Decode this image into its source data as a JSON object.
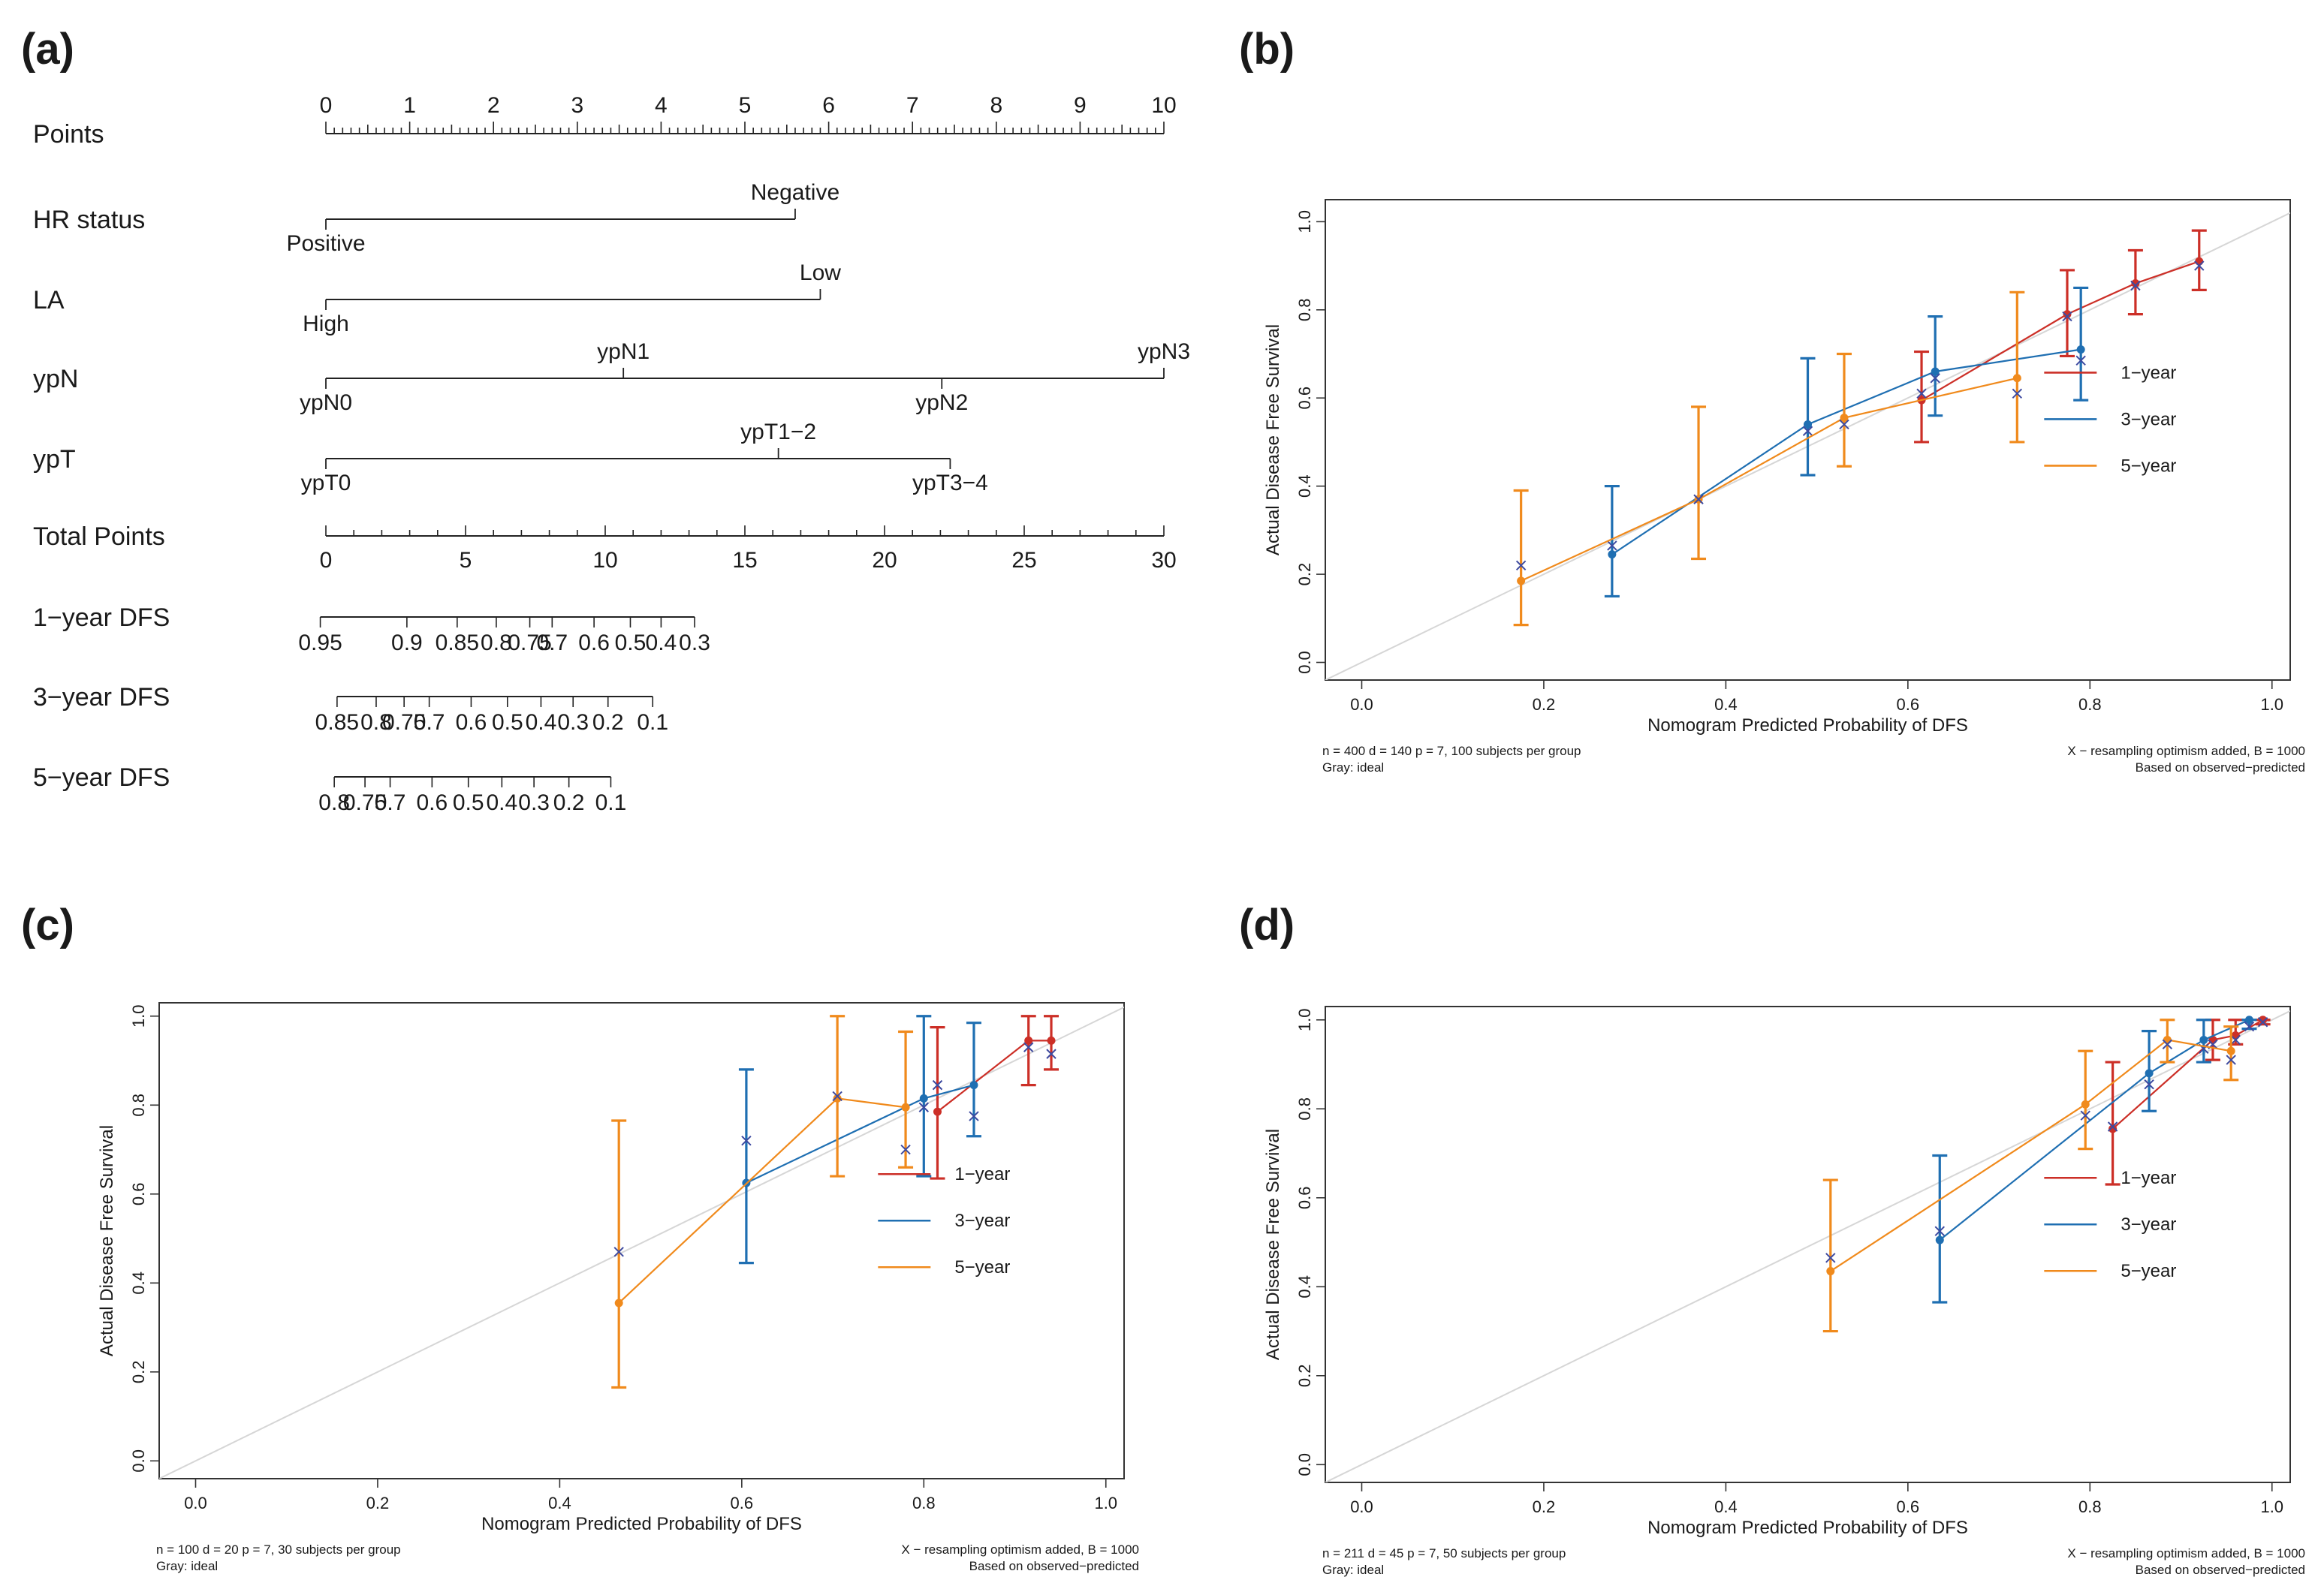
{
  "figure": {
    "panel_letters": [
      "(a)",
      "(b)",
      "(c)",
      "(d)"
    ]
  },
  "nomogram": {
    "rows": [
      {
        "name": "points",
        "label": "Points",
        "kind": "points",
        "ticks": [
          "0",
          "1",
          "2",
          "3",
          "4",
          "5",
          "6",
          "7",
          "8",
          "9",
          "10"
        ]
      },
      {
        "name": "hr-status",
        "label": "HR status",
        "kind": "factor",
        "levels": [
          {
            "label": "Positive",
            "value": 0,
            "pos": "below"
          },
          {
            "label": "Negative",
            "value": 5.6,
            "pos": "above"
          }
        ]
      },
      {
        "name": "la",
        "label": "LA",
        "kind": "factor",
        "levels": [
          {
            "label": "High",
            "value": 0,
            "pos": "below"
          },
          {
            "label": "Low",
            "value": 5.9,
            "pos": "above"
          }
        ]
      },
      {
        "name": "ypn",
        "label": "ypN",
        "kind": "factor",
        "levels": [
          {
            "label": "ypN0",
            "value": 0,
            "pos": "below"
          },
          {
            "label": "ypN1",
            "value": 3.55,
            "pos": "above"
          },
          {
            "label": "ypN2",
            "value": 7.35,
            "pos": "below"
          },
          {
            "label": "ypN3",
            "value": 10,
            "pos": "above"
          }
        ]
      },
      {
        "name": "ypt",
        "label": "ypT",
        "kind": "factor",
        "levels": [
          {
            "label": "ypT0",
            "value": 0,
            "pos": "below"
          },
          {
            "label": "ypT1−2",
            "value": 5.4,
            "pos": "above"
          },
          {
            "label": "ypT3−4",
            "value": 7.45,
            "pos": "below"
          }
        ]
      },
      {
        "name": "total-points",
        "label": "Total Points",
        "kind": "total",
        "ticks": [
          {
            "label": "0",
            "value": 0
          },
          {
            "label": "5",
            "value": 5
          },
          {
            "label": "10",
            "value": 10
          },
          {
            "label": "15",
            "value": 15
          },
          {
            "label": "20",
            "value": 20
          },
          {
            "label": "25",
            "value": 25
          },
          {
            "label": "30",
            "value": 30
          }
        ]
      },
      {
        "name": "dfs-1-year",
        "label": "1−year DFS",
        "kind": "prob",
        "ticks": [
          {
            "label": "0.95",
            "value": -0.2
          },
          {
            "label": "0.9",
            "value": 2.9
          },
          {
            "label": "0.85",
            "value": 4.7
          },
          {
            "label": "0.8",
            "value": 6.1
          },
          {
            "label": "0.75",
            "value": 7.3
          },
          {
            "label": "0.7",
            "value": 8.1
          },
          {
            "label": "0.6",
            "value": 9.6
          },
          {
            "label": "0.5",
            "value": 10.9
          },
          {
            "label": "0.4",
            "value": 12.0
          },
          {
            "label": "0.3",
            "value": 13.2
          }
        ]
      },
      {
        "name": "dfs-3-year",
        "label": "3−year DFS",
        "kind": "prob",
        "ticks": [
          {
            "label": "0.85",
            "value": 0.4
          },
          {
            "label": "0.8",
            "value": 1.8
          },
          {
            "label": "0.75",
            "value": 2.8
          },
          {
            "label": "0.7",
            "value": 3.7
          },
          {
            "label": "0.6",
            "value": 5.2
          },
          {
            "label": "0.5",
            "value": 6.5
          },
          {
            "label": "0.4",
            "value": 7.7
          },
          {
            "label": "0.3",
            "value": 8.85
          },
          {
            "label": "0.2",
            "value": 10.1
          },
          {
            "label": "0.1",
            "value": 11.7
          }
        ]
      },
      {
        "name": "dfs-5-year",
        "label": "5−year DFS",
        "kind": "prob",
        "ticks": [
          {
            "label": "0.8",
            "value": 0.3
          },
          {
            "label": "0.75",
            "value": 1.4
          },
          {
            "label": "0.7",
            "value": 2.3
          },
          {
            "label": "0.6",
            "value": 3.8
          },
          {
            "label": "0.5",
            "value": 5.1
          },
          {
            "label": "0.4",
            "value": 6.3
          },
          {
            "label": "0.3",
            "value": 7.45
          },
          {
            "label": "0.2",
            "value": 8.7
          },
          {
            "label": "0.1",
            "value": 10.2
          }
        ]
      }
    ]
  },
  "colors": {
    "year1": "#cc2f27",
    "year3": "#1f6fb2",
    "year5": "#f08a1c",
    "ideal": "#d6d6d6",
    "cross": "#3d4aa0"
  },
  "chart_data": [
    {
      "type": "line",
      "panel": "(b)",
      "xlabel": "Nomogram Predicted Probability of DFS",
      "ylabel": "Actual Disease Free Survival",
      "xlim": [
        -0.04,
        1.02
      ],
      "ylim": [
        -0.04,
        1.05
      ],
      "xticks": [
        "0.0",
        "0.2",
        "0.4",
        "0.6",
        "0.8",
        "1.0"
      ],
      "yticks": [
        "0.0",
        "0.2",
        "0.4",
        "0.6",
        "0.8",
        "1.0"
      ],
      "legend": [
        "1−year",
        "3−year",
        "5−year"
      ],
      "footnote_left": [
        "n = 400 d = 140 p = 7, 100 subjects per group",
        "Gray: ideal"
      ],
      "footnote_right": [
        "X − resampling optimism added, B = 1000",
        "Based on observed−predicted"
      ],
      "series": [
        {
          "name": "1-year",
          "color_key": "year1",
          "points": [
            {
              "x": 0.615,
              "y": 0.595,
              "lo": 0.5,
              "hi": 0.705,
              "cx": 0.615,
              "cy": 0.61
            },
            {
              "x": 0.775,
              "y": 0.79,
              "lo": 0.695,
              "hi": 0.89,
              "cx": 0.775,
              "cy": 0.785
            },
            {
              "x": 0.85,
              "y": 0.86,
              "lo": 0.79,
              "hi": 0.935,
              "cx": 0.85,
              "cy": 0.855
            },
            {
              "x": 0.92,
              "y": 0.91,
              "lo": 0.845,
              "hi": 0.98,
              "cx": 0.92,
              "cy": 0.9
            }
          ]
        },
        {
          "name": "3-year",
          "color_key": "year3",
          "points": [
            {
              "x": 0.275,
              "y": 0.245,
              "lo": 0.15,
              "hi": 0.4,
              "cx": 0.275,
              "cy": 0.265
            },
            {
              "x": 0.49,
              "y": 0.54,
              "lo": 0.425,
              "hi": 0.69,
              "cx": 0.49,
              "cy": 0.525
            },
            {
              "x": 0.63,
              "y": 0.66,
              "lo": 0.56,
              "hi": 0.785,
              "cx": 0.63,
              "cy": 0.645
            },
            {
              "x": 0.79,
              "y": 0.71,
              "lo": 0.595,
              "hi": 0.85,
              "cx": 0.79,
              "cy": 0.685
            }
          ]
        },
        {
          "name": "5-year",
          "color_key": "year5",
          "points": [
            {
              "x": 0.175,
              "y": 0.185,
              "lo": 0.085,
              "hi": 0.39,
              "cx": 0.175,
              "cy": 0.22
            },
            {
              "x": 0.37,
              "y": 0.37,
              "lo": 0.235,
              "hi": 0.58,
              "cx": 0.37,
              "cy": 0.37
            },
            {
              "x": 0.53,
              "y": 0.555,
              "lo": 0.445,
              "hi": 0.7,
              "cx": 0.53,
              "cy": 0.54
            },
            {
              "x": 0.72,
              "y": 0.645,
              "lo": 0.5,
              "hi": 0.84,
              "cx": 0.72,
              "cy": 0.61
            }
          ]
        }
      ]
    },
    {
      "type": "line",
      "panel": "(c)",
      "xlabel": "Nomogram Predicted Probability of DFS",
      "ylabel": "Actual Disease Free Survival",
      "xlim": [
        -0.04,
        1.02
      ],
      "ylim": [
        -0.04,
        1.03
      ],
      "xticks": [
        "0.0",
        "0.2",
        "0.4",
        "0.6",
        "0.8",
        "1.0"
      ],
      "yticks": [
        "0.0",
        "0.2",
        "0.4",
        "0.6",
        "0.8",
        "1.0"
      ],
      "legend": [
        "1−year",
        "3−year",
        "5−year"
      ],
      "footnote_left": [
        "n = 100 d = 20 p = 7, 30 subjects per group",
        "Gray: ideal"
      ],
      "footnote_right": [
        "X − resampling optimism added, B = 1000",
        "Based on observed−predicted"
      ],
      "series": [
        {
          "name": "1-year",
          "color_key": "year1",
          "points": [
            {
              "x": 0.815,
              "y": 0.785,
              "lo": 0.635,
              "hi": 0.975,
              "cx": 0.815,
              "cy": 0.845
            },
            {
              "x": 0.915,
              "y": 0.945,
              "lo": 0.845,
              "hi": 1.0,
              "cx": 0.915,
              "cy": 0.93
            },
            {
              "x": 0.94,
              "y": 0.945,
              "lo": 0.88,
              "hi": 1.0,
              "cx": 0.94,
              "cy": 0.915
            }
          ]
        },
        {
          "name": "3-year",
          "color_key": "year3",
          "points": [
            {
              "x": 0.605,
              "y": 0.625,
              "lo": 0.445,
              "hi": 0.88,
              "cx": 0.605,
              "cy": 0.72
            },
            {
              "x": 0.8,
              "y": 0.815,
              "lo": 0.64,
              "hi": 1.0,
              "cx": 0.8,
              "cy": 0.795
            },
            {
              "x": 0.855,
              "y": 0.845,
              "lo": 0.73,
              "hi": 0.985,
              "cx": 0.855,
              "cy": 0.775
            }
          ]
        },
        {
          "name": "5-year",
          "color_key": "year5",
          "points": [
            {
              "x": 0.465,
              "y": 0.355,
              "lo": 0.165,
              "hi": 0.765,
              "cx": 0.465,
              "cy": 0.47
            },
            {
              "x": 0.705,
              "y": 0.815,
              "lo": 0.64,
              "hi": 1.0,
              "cx": 0.705,
              "cy": 0.82
            },
            {
              "x": 0.78,
              "y": 0.795,
              "lo": 0.66,
              "hi": 0.965,
              "cx": 0.78,
              "cy": 0.7
            }
          ]
        }
      ]
    },
    {
      "type": "line",
      "panel": "(d)",
      "xlabel": "Nomogram Predicted Probability of DFS",
      "ylabel": "Actual Disease Free Survival",
      "xlim": [
        -0.04,
        1.02
      ],
      "ylim": [
        -0.04,
        1.03
      ],
      "xticks": [
        "0.0",
        "0.2",
        "0.4",
        "0.6",
        "0.8",
        "1.0"
      ],
      "yticks": [
        "0.0",
        "0.2",
        "0.4",
        "0.6",
        "0.8",
        "1.0"
      ],
      "legend": [
        "1−year",
        "3−year",
        "5−year"
      ],
      "footnote_left": [
        "n = 211 d = 45 p = 7, 50 subjects per group",
        "Gray: ideal"
      ],
      "footnote_right": [
        "X − resampling optimism added, B = 1000",
        "Based on observed−predicted"
      ],
      "series": [
        {
          "name": "1-year",
          "color_key": "year1",
          "points": [
            {
              "x": 0.825,
              "y": 0.755,
              "lo": 0.63,
              "hi": 0.905,
              "cx": 0.825,
              "cy": 0.76
            },
            {
              "x": 0.935,
              "y": 0.955,
              "lo": 0.91,
              "hi": 1.0,
              "cx": 0.935,
              "cy": 0.945
            },
            {
              "x": 0.96,
              "y": 0.965,
              "lo": 0.945,
              "hi": 1.0,
              "cx": 0.96,
              "cy": 0.955
            },
            {
              "x": 0.99,
              "y": 1.0,
              "lo": 0.99,
              "hi": 1.0,
              "cx": 0.99,
              "cy": 0.995
            }
          ]
        },
        {
          "name": "3-year",
          "color_key": "year3",
          "points": [
            {
              "x": 0.635,
              "y": 0.505,
              "lo": 0.365,
              "hi": 0.695,
              "cx": 0.635,
              "cy": 0.525
            },
            {
              "x": 0.865,
              "y": 0.88,
              "lo": 0.795,
              "hi": 0.975,
              "cx": 0.865,
              "cy": 0.855
            },
            {
              "x": 0.925,
              "y": 0.955,
              "lo": 0.905,
              "hi": 1.0,
              "cx": 0.925,
              "cy": 0.935
            },
            {
              "x": 0.975,
              "y": 1.0,
              "lo": 0.98,
              "hi": 1.0,
              "cx": 0.975,
              "cy": 0.985
            }
          ]
        },
        {
          "name": "5-year",
          "color_key": "year5",
          "points": [
            {
              "x": 0.515,
              "y": 0.435,
              "lo": 0.3,
              "hi": 0.64,
              "cx": 0.515,
              "cy": 0.465
            },
            {
              "x": 0.795,
              "y": 0.81,
              "lo": 0.71,
              "hi": 0.93,
              "cx": 0.795,
              "cy": 0.785
            },
            {
              "x": 0.885,
              "y": 0.955,
              "lo": 0.905,
              "hi": 1.0,
              "cx": 0.885,
              "cy": 0.945
            },
            {
              "x": 0.955,
              "y": 0.93,
              "lo": 0.865,
              "hi": 0.985,
              "cx": 0.955,
              "cy": 0.91
            }
          ]
        }
      ]
    }
  ]
}
